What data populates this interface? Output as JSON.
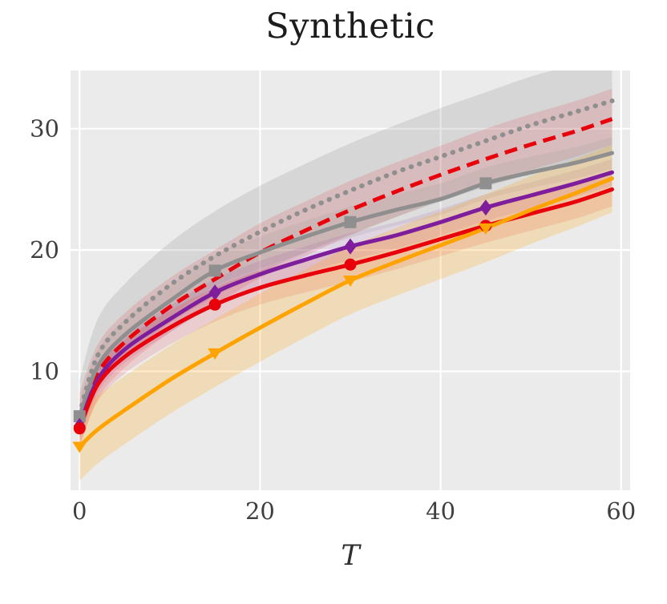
{
  "chart_data": {
    "type": "line",
    "title": "Synthetic",
    "xlabel": "T",
    "ylabel": "",
    "background": "#ebebeb",
    "grid_color": "#ffffff",
    "text_color": "#3f3f3f",
    "grid": true,
    "legend_position": "none",
    "xlim": [
      -1,
      61
    ],
    "ylim": [
      0.2,
      34.8
    ],
    "xticks": [
      0,
      20,
      40,
      60
    ],
    "yticks": [
      10,
      20,
      30
    ],
    "xtick_labels": [
      "0",
      "20",
      "40",
      "60"
    ],
    "ytick_labels": [
      "10",
      "20",
      "30"
    ],
    "x": [
      0,
      2,
      5,
      10,
      15,
      20,
      25,
      30,
      35,
      40,
      45,
      50,
      55,
      59
    ],
    "marker_x": [
      0,
      15,
      30,
      45
    ],
    "series": [
      {
        "name": "gray-dotted",
        "color": "#8f8f8f",
        "line_style": "dotted",
        "line_width": 6,
        "marker": "none",
        "values": [
          6.5,
          11.3,
          14.0,
          17.1,
          19.5,
          21.5,
          23.3,
          24.9,
          26.4,
          27.7,
          29.0,
          30.3,
          31.4,
          32.3
        ],
        "band": {
          "upper": [
            9.3,
            14.3,
            17.2,
            20.6,
            23.2,
            25.3,
            27.1,
            28.8,
            30.3,
            31.7,
            33.0,
            34.3,
            35.3,
            36.2
          ],
          "lower": [
            4.6,
            8.6,
            11.2,
            14.0,
            16.2,
            18.1,
            19.8,
            21.3,
            22.7,
            24.0,
            25.2,
            26.3,
            27.3,
            28.1
          ],
          "opacity": 0.22
        }
      },
      {
        "name": "red-dashed",
        "color": "#e8000b",
        "line_style": "dashed",
        "line_width": 5,
        "marker": "none",
        "values": [
          5.8,
          9.8,
          12.4,
          15.3,
          17.6,
          19.8,
          21.6,
          23.3,
          24.8,
          26.2,
          27.5,
          28.7,
          29.8,
          30.8
        ],
        "band": {
          "upper": [
            8.2,
            12.2,
            14.8,
            17.7,
            20.0,
            22.2,
            24.0,
            25.7,
            27.2,
            28.6,
            30.0,
            31.2,
            32.3,
            33.3
          ],
          "lower": [
            3.7,
            7.7,
            10.3,
            13.2,
            15.5,
            17.7,
            19.5,
            21.2,
            22.7,
            24.1,
            25.4,
            26.6,
            27.7,
            28.7
          ],
          "opacity": 0.12
        }
      },
      {
        "name": "gray-solid-squares",
        "color": "#8f8f8f",
        "line_style": "solid",
        "line_width": 5,
        "marker": "square",
        "values": [
          6.3,
          10.4,
          13.0,
          15.8,
          18.3,
          19.8,
          21.1,
          22.3,
          23.3,
          24.2,
          25.5,
          26.4,
          27.2,
          28.0
        ],
        "band": {
          "upper": [
            7.6,
            11.7,
            14.3,
            17.1,
            19.6,
            21.1,
            22.4,
            23.6,
            24.6,
            25.5,
            26.8,
            27.7,
            28.5,
            29.3
          ],
          "lower": [
            5.0,
            9.1,
            11.7,
            14.5,
            17.0,
            18.5,
            19.8,
            21.0,
            22.0,
            22.9,
            24.2,
            25.1,
            25.9,
            26.7
          ],
          "opacity": 0.15
        }
      },
      {
        "name": "purple-diamonds",
        "color": "#7e1e9c",
        "line_style": "solid",
        "line_width": 5,
        "marker": "diamond",
        "values": [
          5.5,
          9.3,
          11.8,
          14.3,
          16.5,
          18.0,
          19.2,
          20.3,
          21.2,
          22.3,
          23.5,
          24.5,
          25.5,
          26.4
        ],
        "band": {
          "upper": [
            6.6,
            10.4,
            12.9,
            15.4,
            17.6,
            19.1,
            20.3,
            21.4,
            22.3,
            23.4,
            24.6,
            25.6,
            26.6,
            27.5
          ],
          "lower": [
            4.4,
            8.2,
            10.7,
            13.2,
            15.4,
            16.9,
            18.1,
            19.2,
            20.1,
            21.2,
            22.4,
            23.4,
            24.4,
            25.3
          ],
          "opacity": 0.1
        }
      },
      {
        "name": "red-circles",
        "color": "#e8000b",
        "line_style": "solid",
        "line_width": 5,
        "marker": "circle",
        "values": [
          5.3,
          8.9,
          11.2,
          13.6,
          15.5,
          16.9,
          17.9,
          18.8,
          19.8,
          20.9,
          22.0,
          23.0,
          24.0,
          25.0
        ],
        "band": {
          "upper": [
            6.7,
            10.3,
            12.6,
            15.0,
            16.9,
            18.3,
            19.3,
            20.2,
            21.2,
            22.3,
            23.4,
            24.4,
            25.4,
            26.4
          ],
          "lower": [
            3.9,
            7.5,
            9.8,
            12.2,
            14.1,
            15.5,
            16.5,
            17.4,
            18.4,
            19.5,
            20.6,
            21.6,
            22.6,
            23.6
          ],
          "opacity": 0.12
        }
      },
      {
        "name": "orange-triangles",
        "color": "#ffa300",
        "line_style": "solid",
        "line_width": 5,
        "marker": "triangle-down",
        "values": [
          3.8,
          5.2,
          6.8,
          9.3,
          11.5,
          13.6,
          15.6,
          17.5,
          19.0,
          20.4,
          21.8,
          23.3,
          24.7,
          25.9
        ],
        "band": {
          "upper": [
            6.6,
            8.0,
            9.6,
            12.1,
            14.3,
            16.4,
            18.4,
            20.3,
            21.8,
            23.2,
            24.6,
            26.1,
            27.5,
            28.7
          ],
          "lower": [
            1.0,
            2.4,
            4.0,
            6.5,
            8.7,
            10.8,
            12.8,
            14.7,
            16.2,
            17.6,
            19.0,
            20.5,
            21.9,
            23.1
          ],
          "opacity": 0.22
        }
      }
    ]
  }
}
